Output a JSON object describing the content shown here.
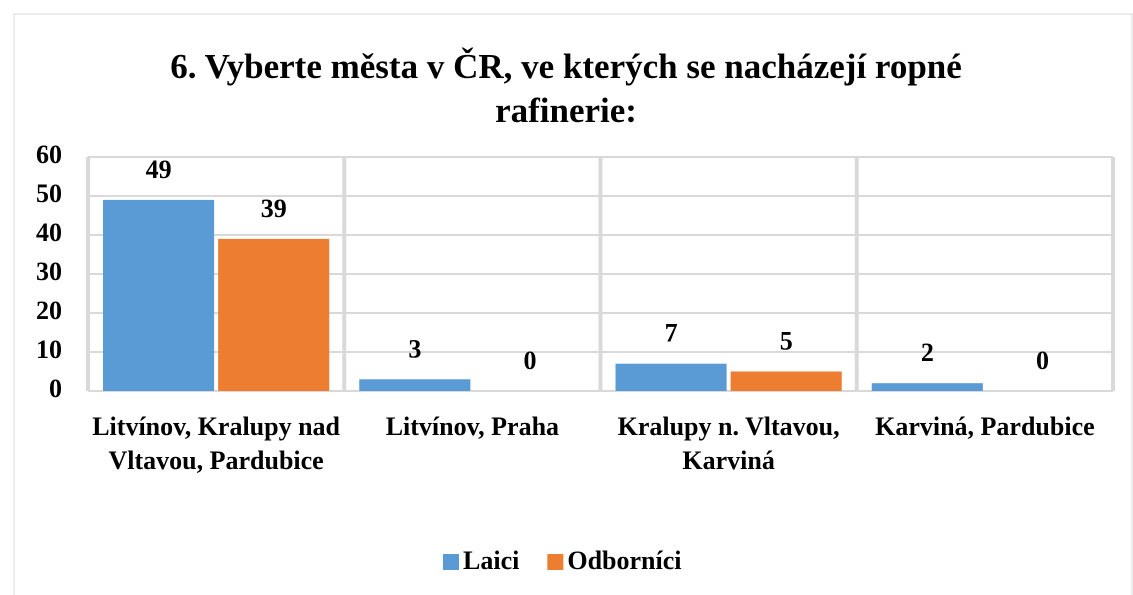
{
  "chart_data": {
    "type": "bar",
    "title": "6. Vyberte města v ČR, ve kterých se nacházejí ropné rafinerie:",
    "categories": [
      "Litvínov, Kralupy nad Vltavou, Pardubice",
      "Litvínov, Praha",
      "Kralupy n. Vltavou, Karviná",
      "Karviná, Pardubice"
    ],
    "series": [
      {
        "name": "Laici",
        "color": "#5b9bd5",
        "values": [
          49,
          3,
          7,
          2
        ]
      },
      {
        "name": "Odborníci",
        "color": "#ed7d31",
        "values": [
          39,
          0,
          5,
          0
        ]
      }
    ],
    "ylim": [
      0,
      60
    ],
    "yticks": [
      0,
      10,
      20,
      30,
      40,
      50,
      60
    ],
    "grid": true,
    "legend": "bottom"
  }
}
